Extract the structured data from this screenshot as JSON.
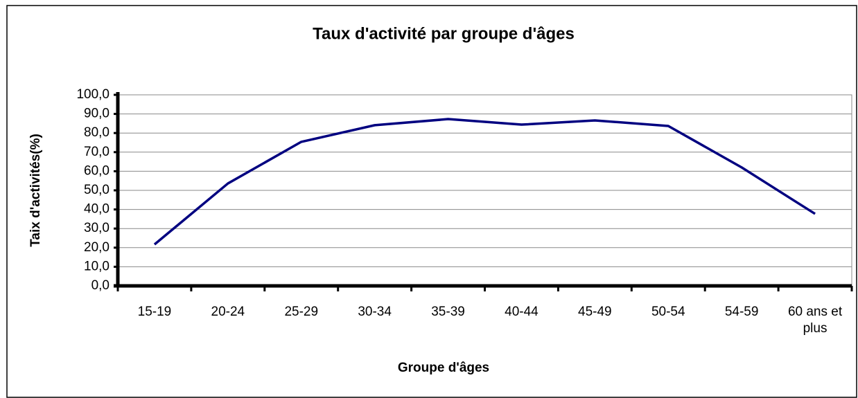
{
  "chart_data": {
    "type": "line",
    "title": "Taux d'activité par groupe d'âges",
    "x_label": "Groupe d'âges",
    "y_label": "Taix d'activités(%)",
    "categories": [
      "15-19",
      "20-24",
      "25-29",
      "30-34",
      "35-39",
      "40-44",
      "45-49",
      "50-54",
      "54-59",
      "60 ans et plus"
    ],
    "values": [
      21.7,
      53.6,
      75.4,
      84.1,
      87.3,
      84.4,
      86.6,
      83.7,
      62.0,
      37.7
    ],
    "color": "#000080",
    "ylim": [
      0,
      100
    ],
    "yticks": [
      {
        "value": 0,
        "label": "0,0"
      },
      {
        "value": 10,
        "label": "10,0"
      },
      {
        "value": 20,
        "label": "20,0"
      },
      {
        "value": 30,
        "label": "30,0"
      },
      {
        "value": 40,
        "label": "40,0"
      },
      {
        "value": 50,
        "label": "50,0"
      },
      {
        "value": 60,
        "label": "60,0"
      },
      {
        "value": 70,
        "label": "70,0"
      },
      {
        "value": 80,
        "label": "80,0"
      },
      {
        "value": 90,
        "label": "90,0"
      },
      {
        "value": 100,
        "label": "100,0"
      }
    ],
    "grid": true
  }
}
